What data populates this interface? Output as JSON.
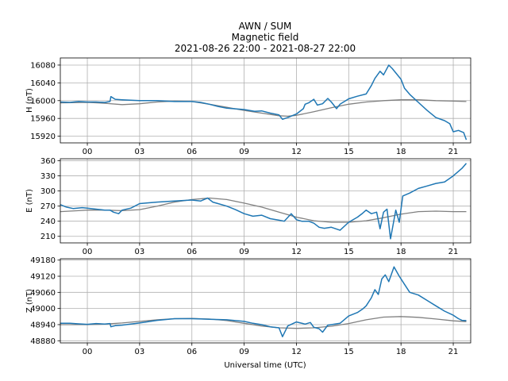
{
  "title_lines": [
    "AWN / SUM",
    "Magnetic field",
    "2021-08-26 22:00 - 2021-08-27 22:00"
  ],
  "xlabel": "Universal time (UTC)",
  "colors": {
    "measured": "#1f77b4",
    "baseline": "#808080",
    "grid": "#b0b0b0"
  },
  "chart_data": [
    {
      "type": "line",
      "ylabel": "H (nT)",
      "xlim": [
        -1.55,
        22.0
      ],
      "ylim": [
        15905,
        16096
      ],
      "xticks": [
        0,
        3,
        6,
        9,
        12,
        15,
        18,
        21
      ],
      "xtick_labels": [
        "00",
        "03",
        "06",
        "09",
        "12",
        "15",
        "18",
        "21"
      ],
      "yticks": [
        15920,
        15960,
        16000,
        16040,
        16080
      ],
      "series": [
        {
          "role": "measured",
          "x": [
            -1.55,
            -1.0,
            -0.5,
            0,
            0.5,
            1.0,
            1.3,
            1.35,
            1.6,
            2.0,
            3.0,
            4.0,
            5.0,
            6.0,
            6.5,
            7.0,
            7.5,
            8.0,
            9.0,
            9.6,
            10.0,
            10.5,
            11.0,
            11.2,
            11.5,
            12.0,
            12.4,
            12.5,
            12.7,
            13.0,
            13.2,
            13.5,
            13.8,
            14.0,
            14.3,
            14.5,
            15.0,
            15.5,
            16.0,
            16.3,
            16.5,
            16.8,
            17.0,
            17.3,
            17.5,
            18.0,
            18.2,
            18.5,
            19.0,
            19.5,
            20.0,
            20.5,
            20.8,
            21.0,
            21.3,
            21.6,
            21.75
          ],
          "y": [
            15997,
            15996,
            15998,
            15997,
            15997,
            15996,
            15998,
            16009,
            16003,
            16002,
            16000,
            16000,
            15998,
            15998,
            15996,
            15992,
            15987,
            15983,
            15980,
            15976,
            15977,
            15972,
            15968,
            15958,
            15962,
            15970,
            15982,
            15992,
            15995,
            16003,
            15990,
            15993,
            16005,
            15997,
            15982,
            15992,
            16004,
            16010,
            16015,
            16034,
            16050,
            16066,
            16058,
            16080,
            16072,
            16048,
            16028,
            16014,
            15996,
            15978,
            15962,
            15955,
            15948,
            15930,
            15933,
            15928,
            15912
          ]
        },
        {
          "role": "baseline",
          "x": [
            -1.55,
            0,
            1.0,
            2.0,
            3.0,
            4.0,
            5.0,
            6.0,
            7.0,
            8.0,
            9.0,
            10.0,
            11.0,
            11.5,
            12.0,
            13.0,
            14.0,
            15.0,
            16.0,
            17.0,
            18.0,
            18.5,
            19.0,
            20.0,
            21.0,
            21.75
          ],
          "y": [
            15995,
            15996,
            15994,
            15991,
            15993,
            15997,
            15999,
            15998,
            15992,
            15985,
            15978,
            15972,
            15966,
            15965,
            15967,
            15975,
            15984,
            15992,
            15997,
            16000,
            16002,
            16002,
            16002,
            16000,
            15999,
            15998
          ]
        }
      ]
    },
    {
      "type": "line",
      "ylabel": "E (nT)",
      "xlim": [
        -1.55,
        22.0
      ],
      "ylim": [
        197,
        364
      ],
      "xticks": [
        0,
        3,
        6,
        9,
        12,
        15,
        18,
        21
      ],
      "xtick_labels": [
        "00",
        "03",
        "06",
        "09",
        "12",
        "15",
        "18",
        "21"
      ],
      "yticks": [
        210,
        240,
        270,
        300,
        330,
        360
      ],
      "series": [
        {
          "role": "measured",
          "x": [
            -1.55,
            -1.2,
            -0.8,
            -0.3,
            0,
            0.5,
            1.0,
            1.3,
            1.5,
            1.8,
            2.0,
            2.5,
            3.0,
            4.0,
            5.0,
            6.0,
            6.5,
            6.9,
            7.2,
            7.5,
            8.0,
            8.5,
            9.0,
            9.5,
            10.0,
            10.5,
            11.0,
            11.3,
            11.7,
            12.0,
            12.3,
            12.7,
            13.0,
            13.3,
            13.6,
            14.0,
            14.5,
            15.0,
            15.5,
            15.8,
            16.0,
            16.3,
            16.6,
            16.8,
            17.0,
            17.2,
            17.4,
            17.7,
            17.9,
            18.1,
            18.5,
            19.0,
            19.5,
            20.0,
            20.5,
            21.0,
            21.5,
            21.75
          ],
          "y": [
            273,
            268,
            265,
            267,
            266,
            264,
            262,
            262,
            258,
            255,
            262,
            266,
            275,
            278,
            280,
            282,
            280,
            286,
            278,
            275,
            270,
            263,
            255,
            250,
            252,
            245,
            242,
            240,
            255,
            243,
            240,
            240,
            236,
            228,
            226,
            228,
            222,
            238,
            248,
            256,
            262,
            255,
            258,
            225,
            258,
            264,
            205,
            262,
            238,
            290,
            296,
            305,
            310,
            315,
            318,
            330,
            345,
            355
          ]
        },
        {
          "role": "baseline",
          "x": [
            -1.55,
            -0.5,
            0,
            1.0,
            2.0,
            3.0,
            4.0,
            5.0,
            6.0,
            7.0,
            8.0,
            9.0,
            10.0,
            11.0,
            12.0,
            13.0,
            14.0,
            15.0,
            16.0,
            17.0,
            18.0,
            19.0,
            20.0,
            21.0,
            21.75
          ],
          "y": [
            259,
            261,
            262,
            262,
            261,
            263,
            270,
            278,
            283,
            286,
            283,
            276,
            268,
            258,
            248,
            241,
            238,
            238,
            241,
            247,
            254,
            259,
            260,
            259,
            259
          ]
        }
      ]
    },
    {
      "type": "line",
      "ylabel": "Z (nT)",
      "xlim": [
        -1.55,
        22.0
      ],
      "ylim": [
        48872,
        49185
      ],
      "xticks": [
        0,
        3,
        6,
        9,
        12,
        15,
        18,
        21
      ],
      "xtick_labels": [
        "00",
        "03",
        "06",
        "09",
        "12",
        "15",
        "18",
        "21"
      ],
      "yticks": [
        48880,
        48940,
        49000,
        49060,
        49120,
        49180
      ],
      "series": [
        {
          "role": "measured",
          "x": [
            -1.55,
            -1.0,
            -0.5,
            0,
            0.5,
            1.0,
            1.3,
            1.35,
            1.6,
            2.0,
            3.0,
            4.0,
            5.0,
            6.0,
            7.0,
            8.0,
            9.0,
            9.5,
            10.0,
            10.5,
            11.0,
            11.2,
            11.5,
            12.0,
            12.5,
            12.8,
            13.0,
            13.3,
            13.5,
            13.8,
            14.0,
            14.5,
            15.0,
            15.5,
            15.8,
            16.0,
            16.3,
            16.5,
            16.7,
            16.9,
            17.1,
            17.3,
            17.6,
            17.9,
            18.2,
            18.5,
            19.0,
            19.5,
            20.0,
            20.5,
            21.0,
            21.3,
            21.5,
            21.75
          ],
          "y": [
            48945,
            48945,
            48943,
            48941,
            48944,
            48942,
            48944,
            48932,
            48936,
            48938,
            48946,
            48956,
            48962,
            48962,
            48960,
            48958,
            48952,
            48945,
            48940,
            48932,
            48928,
            48895,
            48935,
            48950,
            48942,
            48948,
            48930,
            48925,
            48912,
            48938,
            48940,
            48945,
            48972,
            48985,
            48998,
            49010,
            49040,
            49070,
            49052,
            49110,
            49125,
            49100,
            49155,
            49120,
            49090,
            49060,
            49050,
            49030,
            49010,
            48990,
            48975,
            48962,
            48956,
            48955
          ]
        },
        {
          "role": "baseline",
          "x": [
            -1.55,
            -1.0,
            0,
            1.0,
            2.0,
            3.0,
            4.0,
            5.0,
            6.0,
            7.0,
            8.0,
            9.0,
            10.0,
            11.0,
            12.0,
            13.0,
            14.0,
            15.0,
            16.0,
            17.0,
            18.0,
            19.0,
            20.0,
            21.0,
            21.75
          ],
          "y": [
            48940,
            48940,
            48940,
            48942,
            48946,
            48952,
            48958,
            48962,
            48963,
            48961,
            48955,
            48945,
            48935,
            48928,
            48926,
            48928,
            48934,
            48944,
            48958,
            48968,
            48970,
            48967,
            48961,
            48954,
            48951
          ]
        }
      ]
    }
  ]
}
